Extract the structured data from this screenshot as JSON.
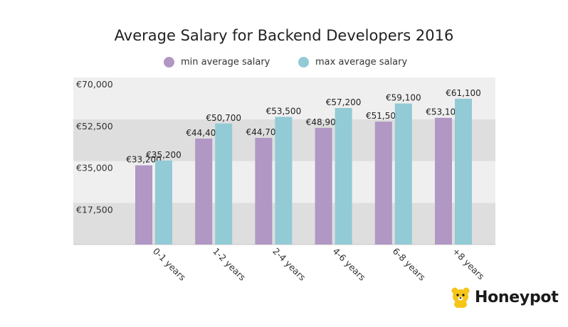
{
  "chart_data": {
    "type": "bar",
    "title": "Average Salary for Backend Developers 2016",
    "categories": [
      "0-1 years",
      "1-2 years",
      "2-4 years",
      "4-6 years",
      "6-8 years",
      "+8 years"
    ],
    "series": [
      {
        "name": "min average salary",
        "color": "#b197c4",
        "values": [
          33200,
          44400,
          44700,
          48900,
          51500,
          53100
        ],
        "labels": [
          "€33,200",
          "€44,400",
          "€44,700",
          "€48,900",
          "€51,500",
          "€53,100"
        ]
      },
      {
        "name": "max average salary",
        "color": "#92cad6",
        "values": [
          35200,
          50700,
          53500,
          57200,
          59100,
          61100
        ],
        "labels": [
          "€35,200",
          "€50,700",
          "€53,500",
          "€57,200",
          "€59,100",
          "€61,100"
        ]
      }
    ],
    "ylim": [
      0,
      70000
    ],
    "yticks": [
      17500,
      35000,
      52500,
      70000
    ],
    "ytick_labels": [
      "€17,500",
      "€35,000",
      "€52,500",
      "€70,000"
    ],
    "xlabel": "",
    "ylabel": "",
    "grid": "alternating horizontal bands",
    "band_colors": [
      "#dedede",
      "#efefef"
    ],
    "legend_position": "top-center"
  },
  "brand": {
    "name": "Honeypot",
    "logo_icon": "bear-icon",
    "logo_color": "#f5c518"
  }
}
